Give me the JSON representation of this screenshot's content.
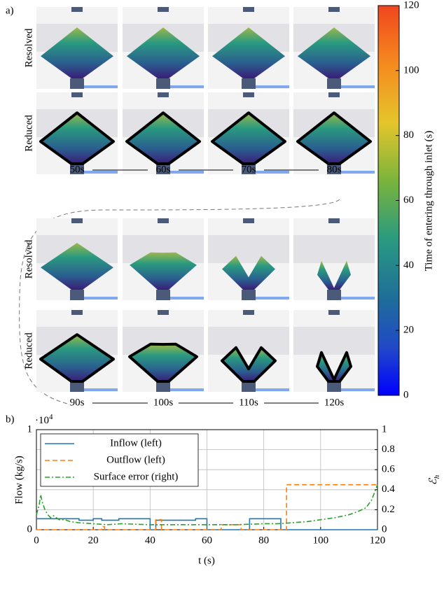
{
  "panel_a": {
    "label": "a)",
    "rows": [
      "Resolved",
      "Reduced",
      "Resolved",
      "Reduced"
    ],
    "times_top": [
      "50s",
      "60s",
      "70s",
      "80s"
    ],
    "times_bottom": [
      "90s",
      "100s",
      "110s",
      "120s"
    ],
    "colorbar": {
      "label": "Time of entering through inlet (s)",
      "lim": [
        0,
        120
      ],
      "ticks": [
        0,
        20,
        40,
        60,
        80,
        100,
        120
      ]
    }
  },
  "chart_data": {
    "type": "line",
    "label": "b)",
    "ylabel": "Flow (kg/s)",
    "y_scale_base": "·10",
    "y_scale_exponent": "4",
    "y2label": "ℰ",
    "y2label_sub": "h",
    "xlabel": "t (s)",
    "xlim": [
      0,
      120
    ],
    "xticks": [
      0,
      20,
      40,
      60,
      80,
      100,
      120
    ],
    "ylim": [
      0,
      1
    ],
    "yticks": [
      0,
      1
    ],
    "y2lim": [
      0,
      1
    ],
    "y2ticks": [
      0,
      0.2,
      0.4,
      0.6,
      0.8,
      1
    ],
    "grid": true,
    "legend": "upper left",
    "series": [
      {
        "name": "Inflow (left)",
        "color": "#1f77b4",
        "dash": "solid",
        "x": [
          0,
          15,
          15,
          20,
          20,
          23,
          23,
          29,
          29,
          40,
          40,
          42,
          42,
          56,
          56,
          60,
          60,
          75,
          75,
          86,
          86,
          120
        ],
        "values": [
          0.11,
          0.11,
          0.095,
          0.095,
          0.11,
          0.11,
          0.095,
          0.095,
          0.11,
          0.11,
          0,
          0,
          0.095,
          0.095,
          0.11,
          0.11,
          0,
          0,
          0.11,
          0.11,
          0,
          0
        ]
      },
      {
        "name": "Outflow (left)",
        "color": "#ff7f0e",
        "dash": "dashed",
        "x": [
          0,
          23,
          23,
          24,
          24,
          42,
          42,
          44,
          44,
          65,
          65,
          72,
          72,
          88,
          88,
          120
        ],
        "values": [
          0,
          0,
          0.03,
          0.03,
          0,
          0,
          0.1,
          0.1,
          0,
          0,
          0.05,
          0.05,
          0,
          0,
          0.45,
          0.45
        ]
      },
      {
        "name": "Surface error (right)",
        "color": "#2ca02c",
        "dash": "dashdot",
        "axis": "y2",
        "x": [
          0,
          1,
          1.5,
          2,
          3,
          4,
          5,
          6,
          8,
          10,
          12,
          15,
          20,
          25,
          30,
          40,
          50,
          60,
          70,
          80,
          85,
          90,
          95,
          100,
          105,
          110,
          113,
          116,
          118,
          120
        ],
        "values": [
          0.15,
          0.25,
          0.35,
          0.28,
          0.2,
          0.15,
          0.12,
          0.14,
          0.1,
          0.1,
          0.08,
          0.07,
          0.06,
          0.05,
          0.06,
          0.05,
          0.05,
          0.05,
          0.05,
          0.06,
          0.06,
          0.07,
          0.08,
          0.1,
          0.12,
          0.15,
          0.18,
          0.22,
          0.3,
          0.45
        ]
      }
    ]
  }
}
